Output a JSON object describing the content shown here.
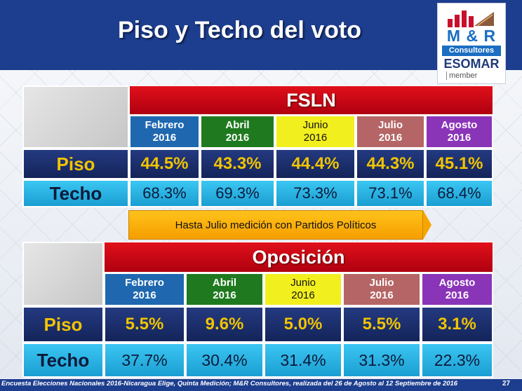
{
  "title": "Piso y Techo del voto",
  "logo": {
    "line1": "M & R",
    "line2": "Consultores",
    "line3": "ESOMAR",
    "line4": "member"
  },
  "fsln": {
    "party": "FSLN",
    "months": [
      {
        "line1": "Febrero",
        "line2": "2016"
      },
      {
        "line1": "Abril",
        "line2": "2016"
      },
      {
        "line1": "Junio",
        "line2": "2016"
      },
      {
        "line1": "Julio",
        "line2": "2016"
      },
      {
        "line1": "Agosto",
        "line2": "2016"
      }
    ],
    "piso_label": "Piso",
    "techo_label": "Techo",
    "piso": [
      "44.5%",
      "43.3%",
      "44.4%",
      "44.3%",
      "45.1%"
    ],
    "techo": [
      "68.3%",
      "69.3%",
      "73.3%",
      "73.1%",
      "68.4%"
    ]
  },
  "banner": "Hasta Julio medición con Partidos Políticos",
  "oposicion": {
    "party": "Oposición",
    "months": [
      {
        "line1": "Febrero",
        "line2": "2016"
      },
      {
        "line1": "Abril",
        "line2": "2016"
      },
      {
        "line1": "Junio",
        "line2": "2016"
      },
      {
        "line1": "Julio",
        "line2": "2016"
      },
      {
        "line1": "Agosto",
        "line2": "2016"
      }
    ],
    "piso_label": "Piso",
    "techo_label": "Techo",
    "piso": [
      "5.5%",
      "9.6%",
      "5.0%",
      "5.5%",
      "3.1%"
    ],
    "techo": [
      "37.7%",
      "30.4%",
      "31.4%",
      "31.3%",
      "22.3%"
    ]
  },
  "footer": {
    "note": "Encuesta Elecciones Nacionales 2016-Nicaragua Elige, Quinta Medición; M&R Consultores, realizada del 26 de Agosto al 12 Septiembre de 2016",
    "page": "27"
  },
  "colors": {
    "header_bg": "#1d3e8e",
    "party_red": "#e0101a",
    "piso_text": "#f2c400",
    "techo_bg": "#3bc6f2",
    "banner_orange": "#ffc21a"
  }
}
